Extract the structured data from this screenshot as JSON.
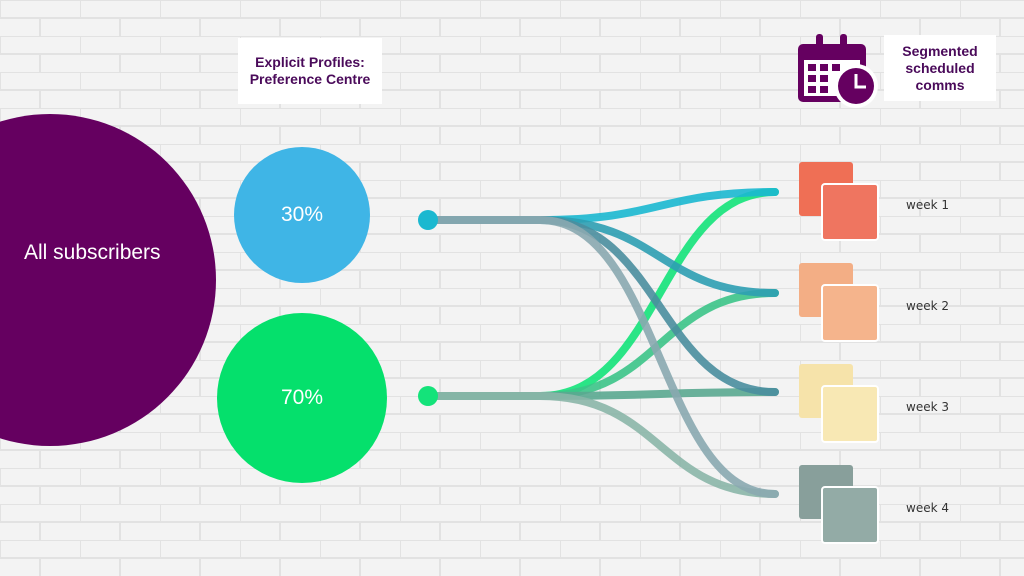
{
  "header": {
    "title": "Explicit Profiles: Preference Centre"
  },
  "source": {
    "label": "All subscribers"
  },
  "segments": [
    {
      "label": "30%"
    },
    {
      "label": "70%"
    }
  ],
  "schedule": {
    "title": "Segmented scheduled comms",
    "weeks": [
      "week 1",
      "week 2",
      "week 3",
      "week 4"
    ]
  }
}
